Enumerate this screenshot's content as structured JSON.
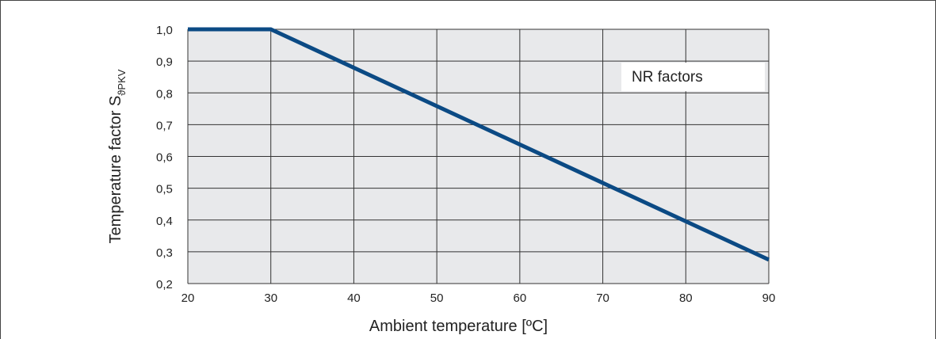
{
  "chart_data": {
    "type": "line",
    "xlabel": "Ambient temperature [ºC]",
    "ylabel_main": "Temperature factor S",
    "ylabel_sub": "ϑPKV",
    "annotation": "NR factors",
    "xlim": [
      20,
      90
    ],
    "ylim": [
      0.2,
      1.0
    ],
    "x_ticks": [
      20,
      30,
      40,
      50,
      60,
      70,
      80,
      90
    ],
    "y_ticks": [
      1.0,
      0.9,
      0.8,
      0.7,
      0.6,
      0.5,
      0.4,
      0.3,
      0.2
    ],
    "y_tick_labels": [
      "1,0",
      "0,9",
      "0,8",
      "0,7",
      "0,6",
      "0,5",
      "0,4",
      "0,3",
      "0,2"
    ],
    "grid": true,
    "series": [
      {
        "x": [
          20,
          30,
          90
        ],
        "y": [
          1.0,
          1.0,
          0.275
        ]
      }
    ],
    "colors": {
      "line": "#0b4a84",
      "plot_bg": "#e8e9eb",
      "grid": "#333333"
    }
  }
}
